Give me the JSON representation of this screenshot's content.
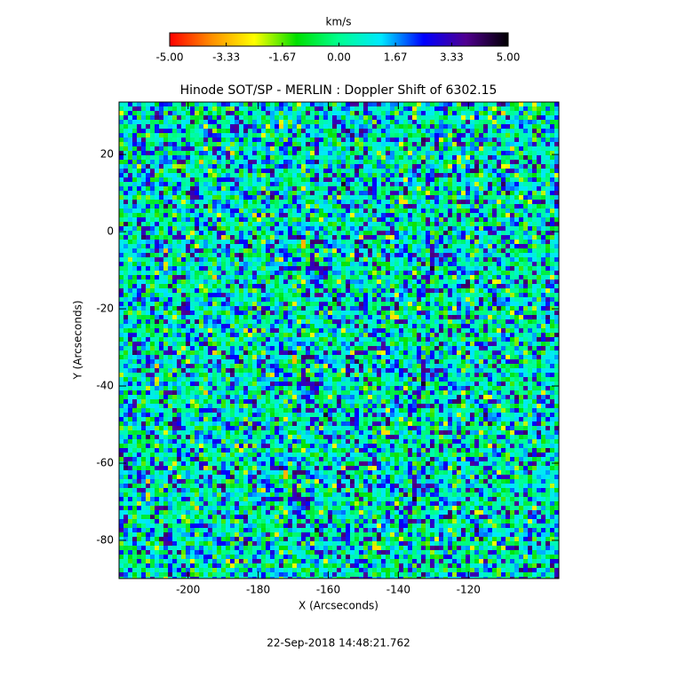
{
  "chart_data": {
    "type": "heatmap",
    "title": "Hinode SOT/SP - MERLIN : Doppler Shift of 6302.15",
    "x_label": "X (Arcseconds)",
    "y_label": "Y (Arcseconds)",
    "xlim": [
      -219.7,
      -94.2
    ],
    "xticks": [
      -200,
      -180,
      -160,
      -140,
      -120
    ],
    "ylim": [
      -89.9,
      33.6
    ],
    "yticks": [
      -80,
      -60,
      -40,
      -20,
      0,
      20
    ],
    "colorbar": {
      "label": "km/s",
      "lim": [
        -5,
        5
      ],
      "ticks": [
        {
          "value": -5,
          "label": "-5.00"
        },
        {
          "value": -3.33,
          "label": "-3.33"
        },
        {
          "value": -1.67,
          "label": "-1.67"
        },
        {
          "value": 0,
          "label": "0.00"
        },
        {
          "value": 1.67,
          "label": "1.67"
        },
        {
          "value": 3.33,
          "label": "3.33"
        },
        {
          "value": 5,
          "label": "5.00"
        }
      ],
      "colormap": [
        "#ff0000",
        "#ff9000",
        "#ffff00",
        "#00e000",
        "#00ff90",
        "#00e8ff",
        "#0000ff",
        "#500090",
        "#000000"
      ]
    },
    "footer": "22-Sep-2018 14:48:21.762"
  }
}
